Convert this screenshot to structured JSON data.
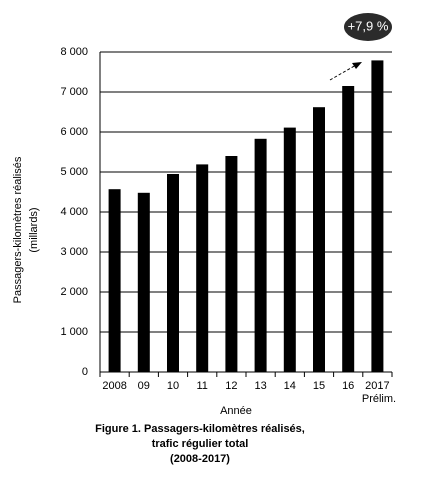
{
  "chart_data": {
    "type": "bar",
    "y_title": [
      "Passagers-kilomètres réalisés",
      "(millards)"
    ],
    "x_title": "Année",
    "categories": [
      "2008",
      "09",
      "10",
      "11",
      "12",
      "13",
      "14",
      "15",
      "16",
      "2017"
    ],
    "values": [
      4570,
      4480,
      4950,
      5190,
      5400,
      5830,
      6110,
      6620,
      7150,
      7790
    ],
    "color": "#000000",
    "ylim": [
      0,
      8000
    ],
    "yticks": [
      0,
      {
        "value": 1000,
        "label": "1 000"
      },
      {
        "value": 2000,
        "label": "2 000"
      },
      {
        "value": 3000,
        "label": "3 000"
      },
      {
        "value": 4000,
        "label": "4 000"
      },
      {
        "value": 5000,
        "label": "5 000"
      },
      {
        "value": 6000,
        "label": "6 000"
      },
      {
        "value": 7000,
        "label": "7 000"
      },
      {
        "value": 8000,
        "label": "8 000"
      }
    ],
    "grid": true,
    "annotations": [
      "Prélim.",
      "+7,9 %"
    ],
    "caption": [
      "Figure 1. Passagers-kilomètres réalisés,",
      "trafic régulier total",
      "(2008-2017)"
    ]
  }
}
